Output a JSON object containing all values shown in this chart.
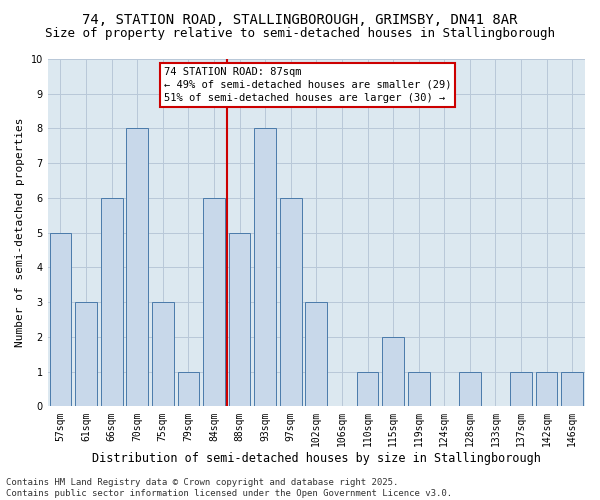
{
  "title_line1": "74, STATION ROAD, STALLINGBOROUGH, GRIMSBY, DN41 8AR",
  "title_line2": "Size of property relative to semi-detached houses in Stallingborough",
  "xlabel": "Distribution of semi-detached houses by size in Stallingborough",
  "ylabel": "Number of semi-detached properties",
  "categories": [
    "57sqm",
    "61sqm",
    "66sqm",
    "70sqm",
    "75sqm",
    "79sqm",
    "84sqm",
    "88sqm",
    "93sqm",
    "97sqm",
    "102sqm",
    "106sqm",
    "110sqm",
    "115sqm",
    "119sqm",
    "124sqm",
    "128sqm",
    "133sqm",
    "137sqm",
    "142sqm",
    "146sqm"
  ],
  "values": [
    5,
    3,
    6,
    8,
    3,
    1,
    6,
    5,
    8,
    6,
    3,
    0,
    1,
    2,
    1,
    0,
    1,
    0,
    1,
    1,
    1
  ],
  "bar_color": "#c8d8ea",
  "bar_edge_color": "#4a7aaa",
  "subject_line_index": 7,
  "subject_label": "74 STATION ROAD: 87sqm",
  "annotation_line1": "← 49% of semi-detached houses are smaller (29)",
  "annotation_line2": "51% of semi-detached houses are larger (30) →",
  "ylim": [
    0,
    10
  ],
  "yticks": [
    0,
    1,
    2,
    3,
    4,
    5,
    6,
    7,
    8,
    9,
    10
  ],
  "grid_color": "#b8c8d8",
  "background_color": "#dce8f0",
  "footer_line1": "Contains HM Land Registry data © Crown copyright and database right 2025.",
  "footer_line2": "Contains public sector information licensed under the Open Government Licence v3.0.",
  "title_fontsize": 10,
  "subtitle_fontsize": 9,
  "xlabel_fontsize": 8.5,
  "ylabel_fontsize": 8,
  "tick_fontsize": 7,
  "footer_fontsize": 6.5,
  "annotation_fontsize": 7.5
}
